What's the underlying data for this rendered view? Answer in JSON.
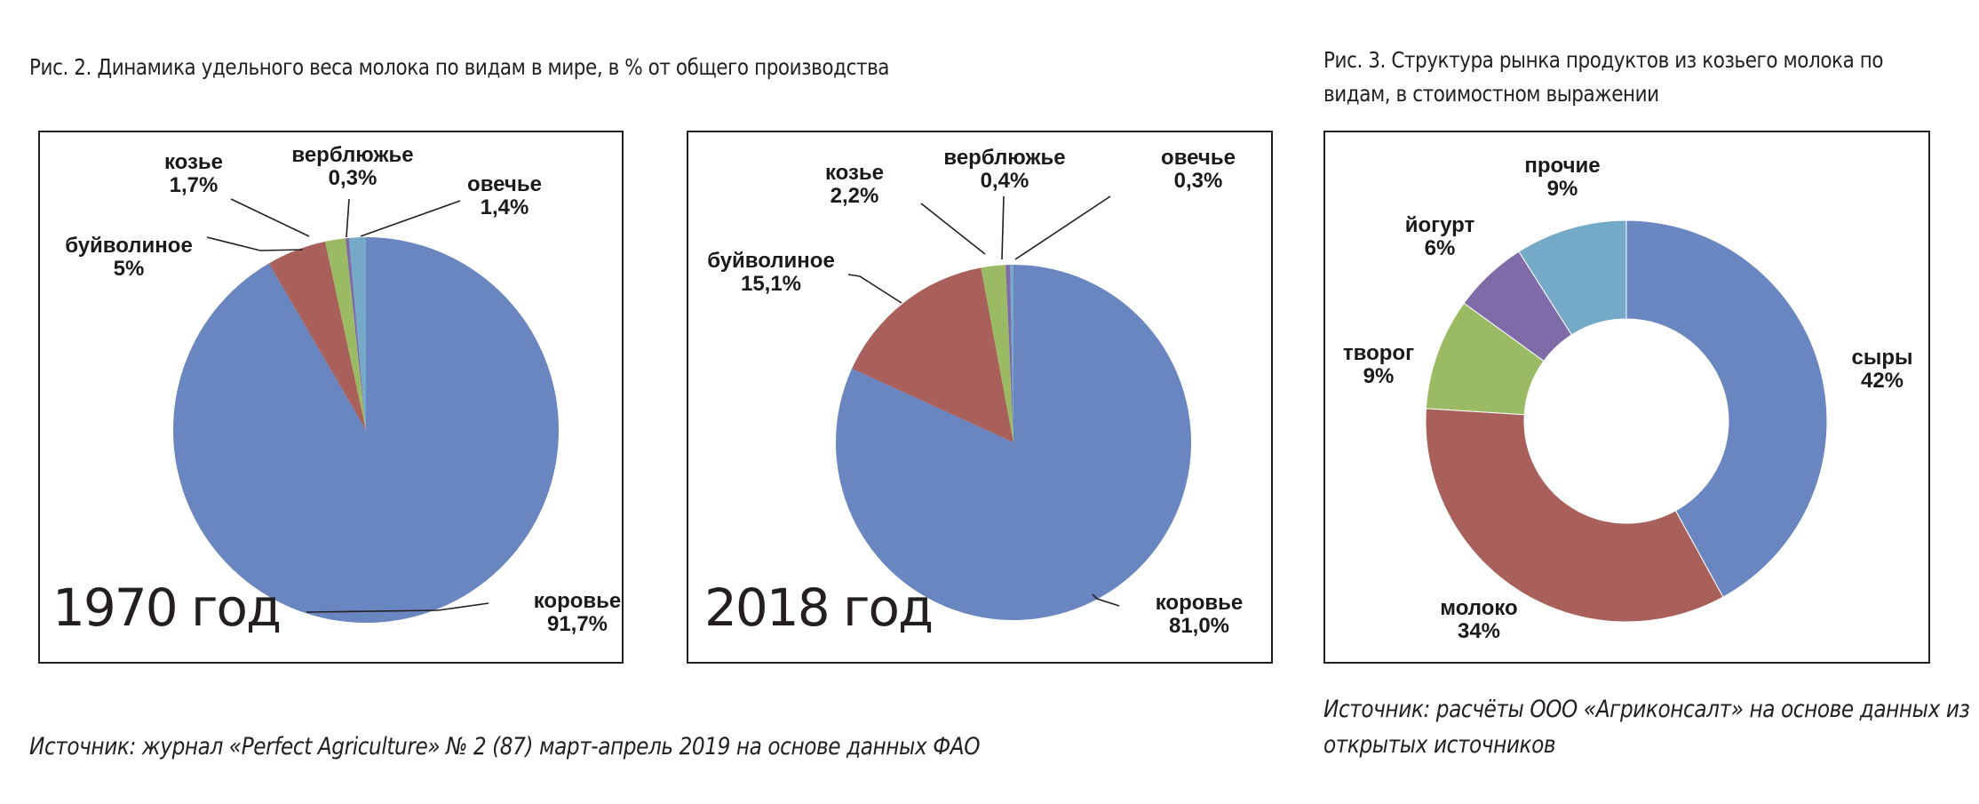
{
  "fig2": {
    "caption": "Рис. 2. Динамика удельного веса молока по видам в мире, в % от общего производства",
    "source": "Источник: журнал «Perfect Agriculture» № 2 (87) март-апрель 2019 на основе данных ФАО"
  },
  "fig3": {
    "caption_line1": "Рис. 3. Структура рынка продуктов из козьего молока по",
    "caption_line2": "видам, в стоимостном выражении",
    "source_line1": "Источник: расчёты ООО «Агриконсалт» на основе данных из",
    "source_line2": "открытых источников"
  },
  "colors": {
    "cow": "#6a86c0",
    "buffalo": "#a9605b",
    "goat": "#9bba64",
    "camel": "#7f6ba8",
    "sheep": "#74a9c8",
    "frame": "#231f20"
  },
  "chart_data": [
    {
      "type": "pie",
      "year_label": "1970 год",
      "slices": [
        {
          "name": "коровье",
          "value": 91.7,
          "label": "91,7%",
          "color": "#6a86c0"
        },
        {
          "name": "буйволиное",
          "value": 5,
          "label": "5%",
          "color": "#a9605b"
        },
        {
          "name": "козье",
          "value": 1.7,
          "label": "1,7%",
          "color": "#9bba64"
        },
        {
          "name": "верблюжье",
          "value": 0.3,
          "label": "0,3%",
          "color": "#7f6ba8"
        },
        {
          "name": "овечье",
          "value": 1.4,
          "label": "1,4%",
          "color": "#74a9c8"
        }
      ]
    },
    {
      "type": "pie",
      "year_label": "2018 год",
      "slices": [
        {
          "name": "коровье",
          "value": 81.0,
          "label": "81,0%",
          "color": "#6a86c0"
        },
        {
          "name": "буйволиное",
          "value": 15.1,
          "label": "15,1%",
          "color": "#a9605b"
        },
        {
          "name": "козье",
          "value": 2.2,
          "label": "2,2%",
          "color": "#9bba64"
        },
        {
          "name": "верблюжье",
          "value": 0.4,
          "label": "0,4%",
          "color": "#7f6ba8"
        },
        {
          "name": "овечье",
          "value": 0.3,
          "label": "0,3%",
          "color": "#74a9c8"
        }
      ]
    },
    {
      "type": "donut",
      "slices": [
        {
          "name": "сыры",
          "value": 42,
          "label": "42%",
          "color": "#6a86c0"
        },
        {
          "name": "молоко",
          "value": 34,
          "label": "34%",
          "color": "#a9605b"
        },
        {
          "name": "творог",
          "value": 9,
          "label": "9%",
          "color": "#9bba64"
        },
        {
          "name": "йогурт",
          "value": 6,
          "label": "6%",
          "color": "#7f6ba8"
        },
        {
          "name": "прочие",
          "value": 9,
          "label": "9%",
          "color": "#74a9c8"
        }
      ]
    }
  ]
}
